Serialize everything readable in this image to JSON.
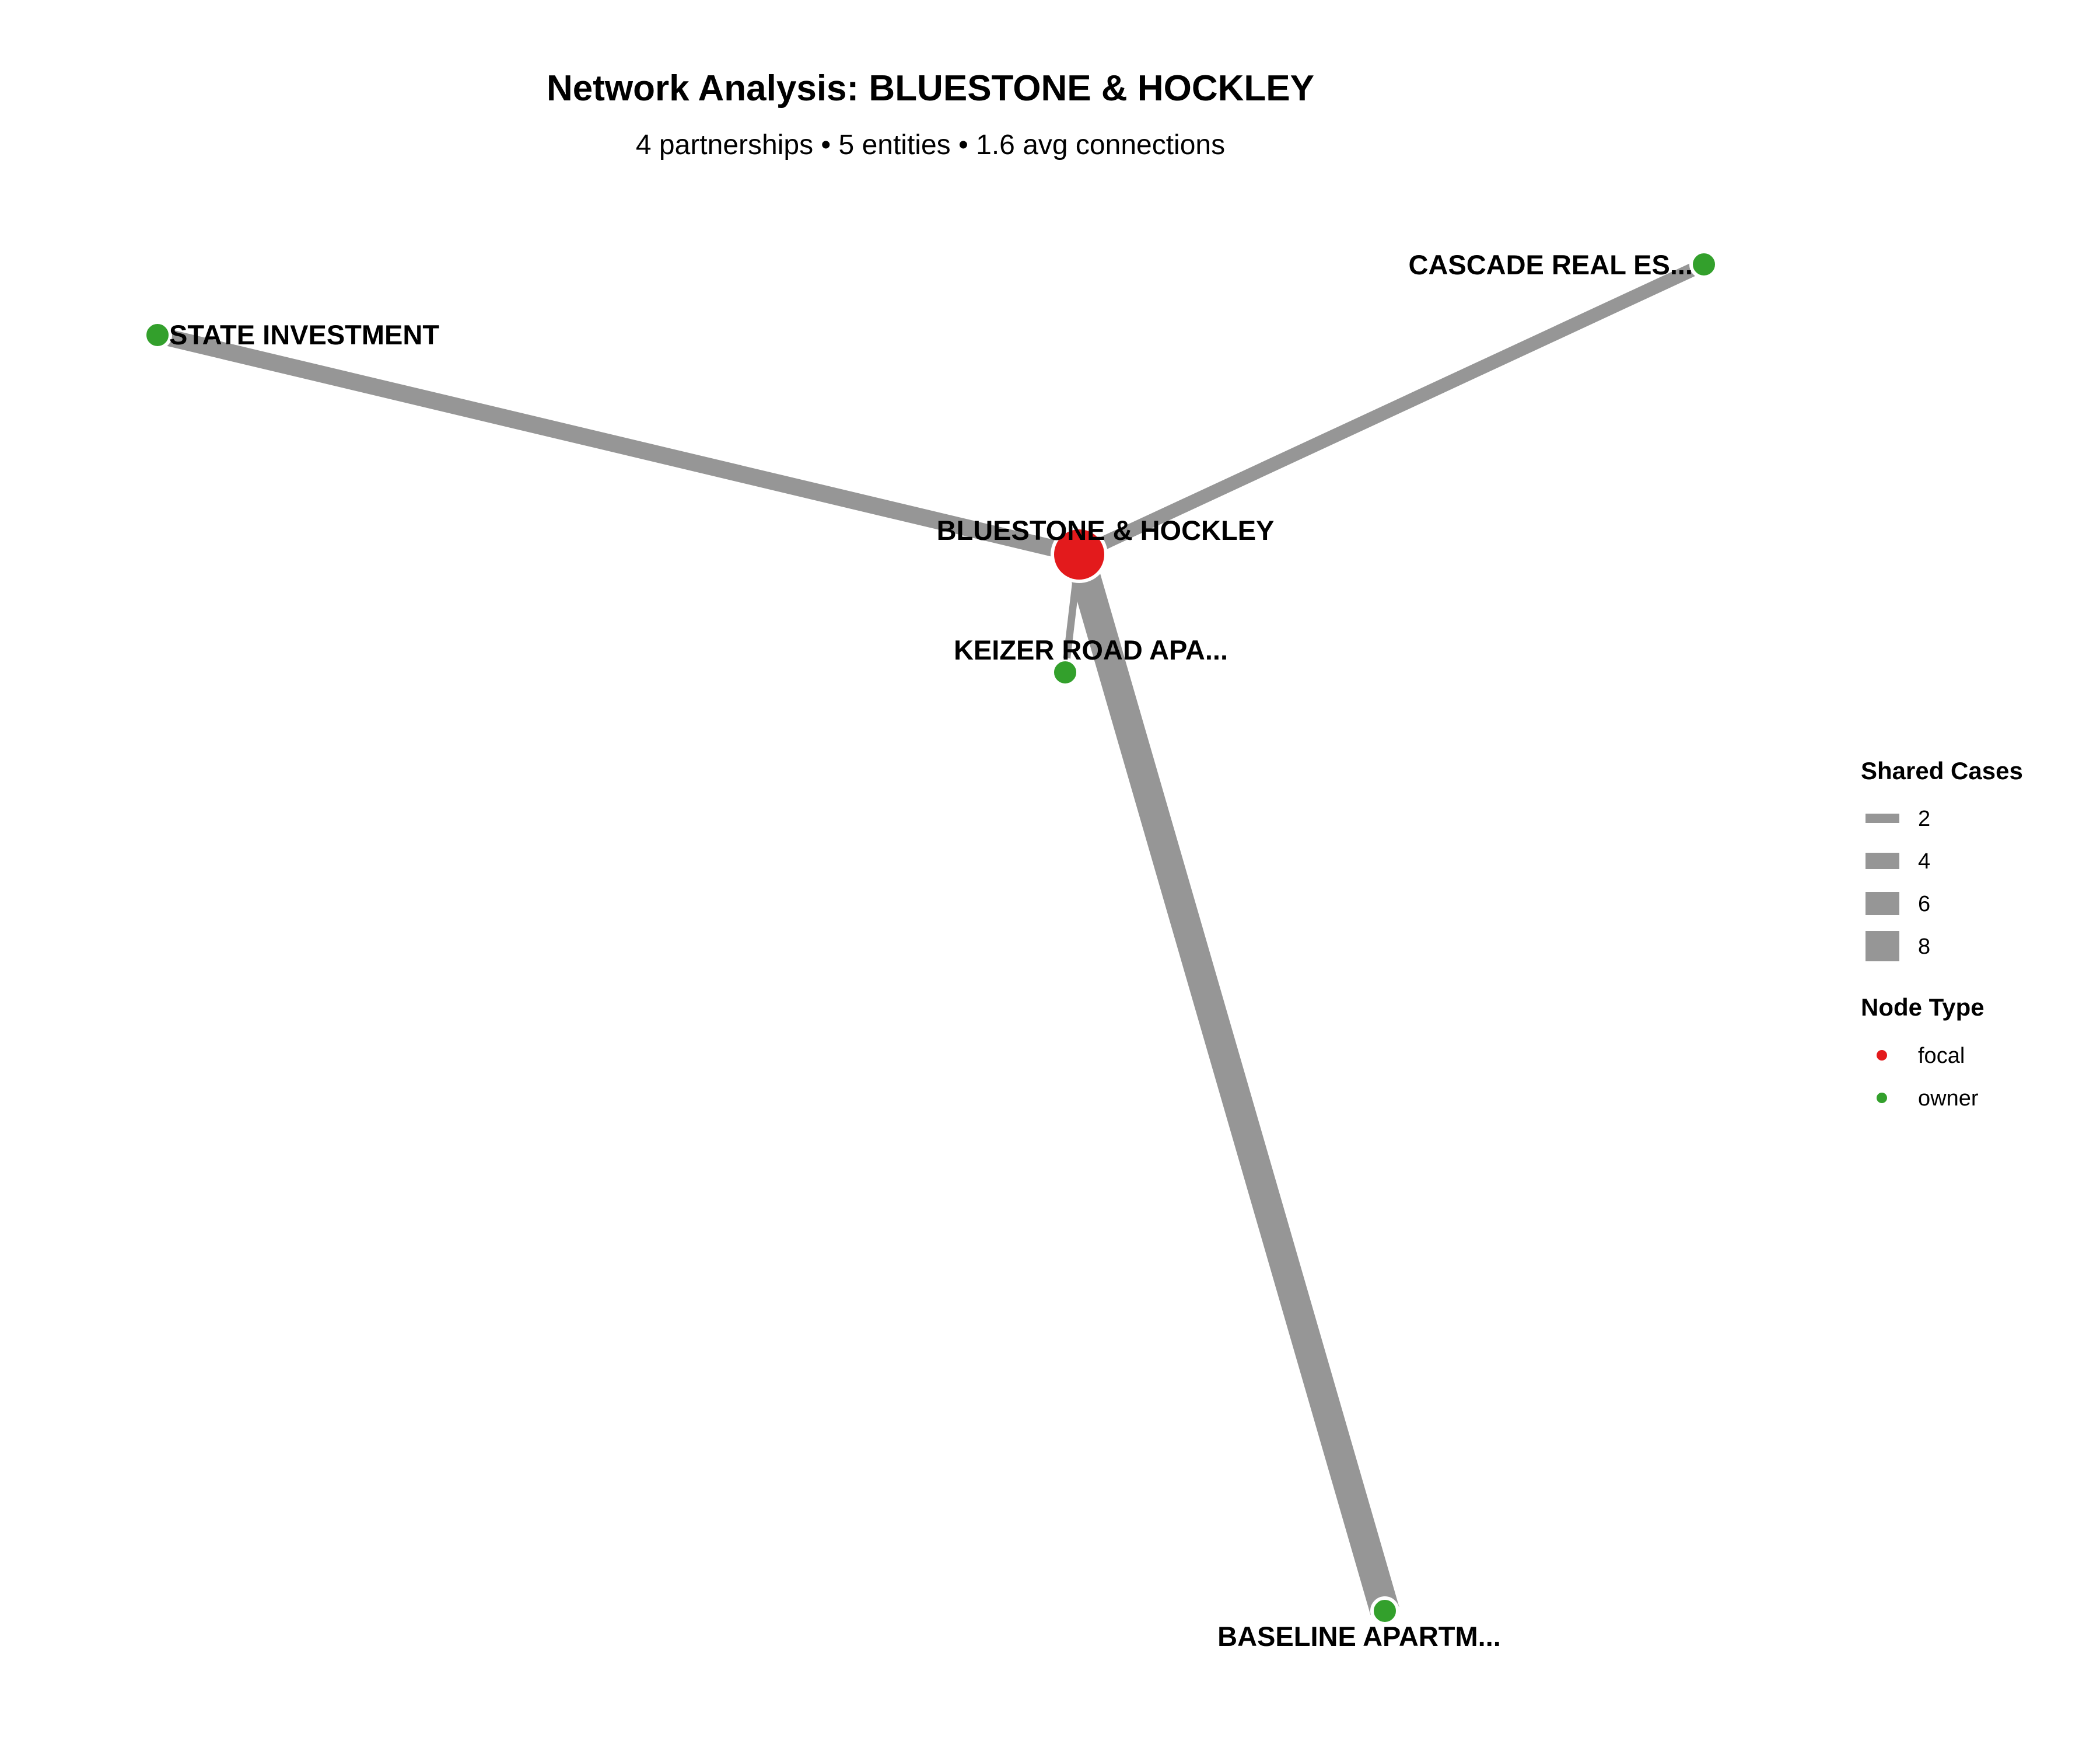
{
  "header": {
    "title": "Network Analysis: BLUESTONE & HOCKLEY",
    "subtitle": "4 partnerships • 5 entities • 1.6 avg connections"
  },
  "colors": {
    "focal": "#e31a1c",
    "owner": "#33a02c",
    "edge": "#969696"
  },
  "network": {
    "nodes": [
      {
        "id": "bluestone",
        "label": "BLUESTONE & HOCKLEY",
        "type": "focal"
      },
      {
        "id": "state",
        "label": "STATE INVESTMENT",
        "type": "owner"
      },
      {
        "id": "cascade",
        "label": "CASCADE REAL ES...",
        "type": "owner"
      },
      {
        "id": "keizer",
        "label": "KEIZER ROAD APA...",
        "type": "owner"
      },
      {
        "id": "baseline",
        "label": "BASELINE APARTM...",
        "type": "owner"
      }
    ],
    "edges": [
      {
        "source": "bluestone",
        "target": "state",
        "shared_cases": 4
      },
      {
        "source": "bluestone",
        "target": "cascade",
        "shared_cases": 3
      },
      {
        "source": "bluestone",
        "target": "keizer",
        "shared_cases": 1
      },
      {
        "source": "bluestone",
        "target": "baseline",
        "shared_cases": 8
      }
    ]
  },
  "legend": {
    "shared_cases": {
      "title": "Shared Cases",
      "items": [
        {
          "label": "2",
          "value": 2
        },
        {
          "label": "4",
          "value": 4
        },
        {
          "label": "6",
          "value": 6
        },
        {
          "label": "8",
          "value": 8
        }
      ]
    },
    "node_type": {
      "title": "Node Type",
      "items": [
        {
          "label": "focal",
          "type": "focal"
        },
        {
          "label": "owner",
          "type": "owner"
        }
      ]
    }
  }
}
